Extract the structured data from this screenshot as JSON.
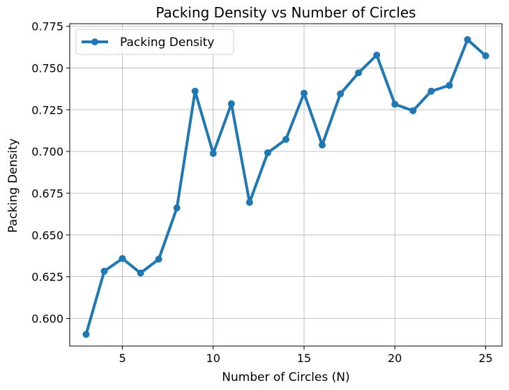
{
  "chart_data": {
    "type": "line",
    "title": "Packing Density vs Number of Circles",
    "xlabel": "Number of Circles (N)",
    "ylabel": "Packing Density",
    "xlim": [
      2.1,
      25.9
    ],
    "ylim": [
      0.5835,
      0.7765
    ],
    "grid": true,
    "legend_position": "top-left",
    "xticks": [
      5,
      10,
      15,
      20,
      25
    ],
    "yticks": [
      0.6,
      0.625,
      0.65,
      0.675,
      0.7,
      0.725,
      0.75,
      0.775
    ],
    "xtick_labels": [
      "5",
      "10",
      "15",
      "20",
      "25"
    ],
    "ytick_labels": [
      "0.600",
      "0.625",
      "0.650",
      "0.675",
      "0.700",
      "0.725",
      "0.750",
      "0.775"
    ],
    "series": [
      {
        "name": "Packing Density",
        "color": "#1f77b4",
        "x": [
          3,
          4,
          5,
          6,
          7,
          8,
          9,
          10,
          11,
          12,
          13,
          14,
          15,
          16,
          17,
          18,
          19,
          20,
          21,
          22,
          23,
          24,
          25
        ],
        "y": [
          0.5905,
          0.6283,
          0.6359,
          0.6272,
          0.6355,
          0.6662,
          0.7361,
          0.6988,
          0.7286,
          0.6695,
          0.6992,
          0.7072,
          0.7349,
          0.7039,
          0.7345,
          0.7471,
          0.7577,
          0.7283,
          0.7244,
          0.7361,
          0.7396,
          0.767,
          0.7573
        ]
      }
    ]
  }
}
